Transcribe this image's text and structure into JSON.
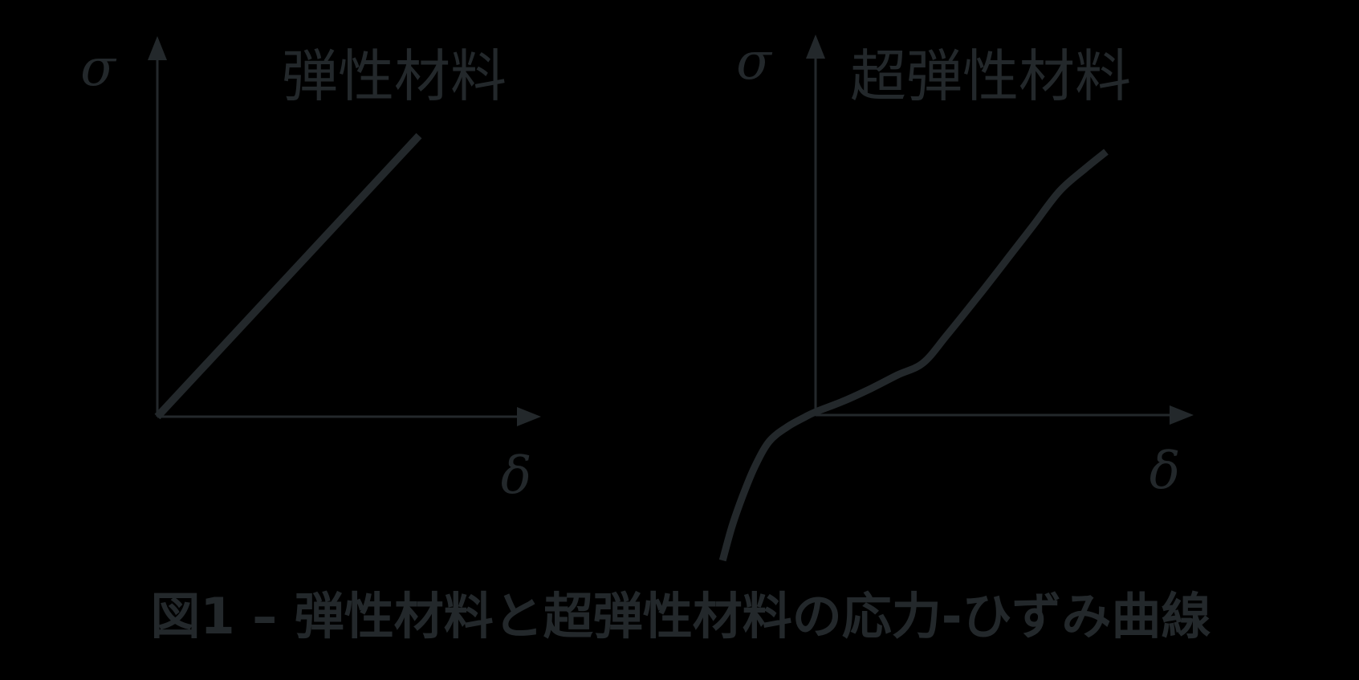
{
  "colors": {
    "background": "#000000",
    "ink": "#23282b"
  },
  "panels": [
    {
      "title": "弾性材料",
      "y_axis_label": "σ",
      "x_axis_label": "δ"
    },
    {
      "title": "超弾性材料",
      "y_axis_label": "σ",
      "x_axis_label": "δ"
    }
  ],
  "caption": "図1 – 弾性材料と超弾性材料の応力-ひずみ曲線",
  "chart_data": [
    {
      "type": "line",
      "title": "弾性材料",
      "xlabel": "δ",
      "ylabel": "σ",
      "axis_tick_labels_shown": false,
      "grid": false,
      "legend": false,
      "x_range_normalized": [
        0,
        1
      ],
      "y_range_normalized": [
        0,
        1
      ],
      "series": [
        {
          "name": "弾性材料",
          "shape": "linear",
          "x": [
            0,
            1
          ],
          "y": [
            0,
            1
          ]
        }
      ]
    },
    {
      "type": "line",
      "title": "超弾性材料",
      "xlabel": "δ",
      "ylabel": "σ",
      "axis_tick_labels_shown": false,
      "grid": false,
      "legend": false,
      "x_range_normalized": [
        -0.33,
        1
      ],
      "y_range_normalized": [
        -0.56,
        1
      ],
      "series": [
        {
          "name": "超弾性材料",
          "shape": "s-curve",
          "x": [
            -0.32,
            -0.287,
            -0.251,
            -0.21,
            -0.16,
            -0.099,
            -0.039,
            0.0,
            0.094,
            0.191,
            0.282,
            0.37,
            0.453,
            0.564,
            0.674,
            0.751,
            0.84,
            0.928,
            1.0
          ],
          "y": [
            -0.552,
            -0.421,
            -0.308,
            -0.198,
            -0.101,
            -0.046,
            -0.009,
            0.012,
            0.052,
            0.101,
            0.152,
            0.198,
            0.305,
            0.457,
            0.613,
            0.723,
            0.851,
            0.936,
            1.0
          ]
        }
      ]
    }
  ]
}
